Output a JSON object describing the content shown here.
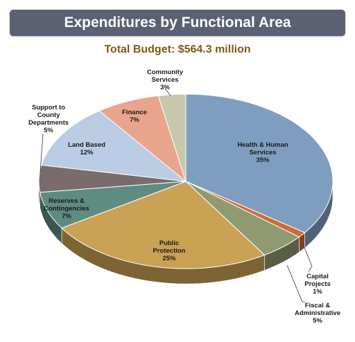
{
  "header": {
    "title": "Expenditures by Functional Area",
    "subtitle": "Total Budget: $564.3 million"
  },
  "chart_data": {
    "type": "pie",
    "title": "Expenditures by Functional Area",
    "subtitle": "Total Budget: $564.3 million",
    "categories": [
      "Health & Human Services",
      "Capital Projects",
      "Fiscal & Administrative",
      "Public Protection",
      "Reserves & Contingencies",
      "Support to County Departments",
      "Land Based",
      "Finance",
      "Community Services"
    ],
    "values": [
      35,
      1,
      5,
      25,
      7,
      5,
      12,
      7,
      3
    ],
    "value_labels": [
      "35%",
      "1%",
      "5%",
      "25%",
      "7%",
      "5%",
      "12%",
      "7%",
      "3%"
    ],
    "label_lines": [
      [
        "Health & Human",
        "Services",
        "35%"
      ],
      [
        "Capital",
        "Projects",
        "1%"
      ],
      [
        "Fiscal &",
        "Administrative",
        "5%"
      ],
      [
        "Public",
        "Protection",
        "25%"
      ],
      [
        "Reserves &",
        "Contingencies",
        "7%"
      ],
      [
        "Support to",
        "County",
        "Departments",
        "5%"
      ],
      [
        "Land Based",
        "12%"
      ],
      [
        "Finance",
        "7%"
      ],
      [
        "Community",
        "Services",
        "3%"
      ]
    ],
    "colors": [
      "#7f9ebf",
      "#cd6b3b",
      "#8f9a72",
      "#c9a155",
      "#5f8c80",
      "#7a6b6d",
      "#b9cce3",
      "#e8a48c",
      "#c6c8ae"
    ],
    "start_angle_deg": 0,
    "direction": "clockwise",
    "style": "3d"
  }
}
